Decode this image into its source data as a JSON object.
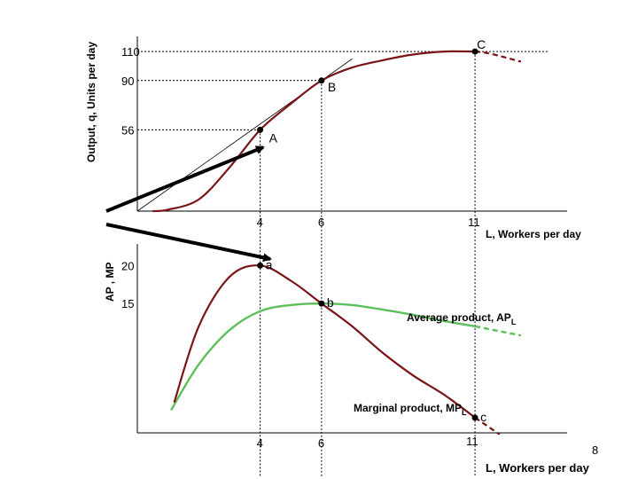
{
  "colors": {
    "tp": "#7a1416",
    "ap": "#5cbf5c",
    "axis": "#000000",
    "arrow": "#000000"
  },
  "page_number": "8",
  "chart_data": [
    {
      "type": "line",
      "panel": "total-product",
      "ylabel": "Output, q, Units per day",
      "xlabel": "L, Workers per day",
      "x_ticks": [
        "4",
        "6",
        "11"
      ],
      "y_ticks": [
        "56",
        "90",
        "110"
      ],
      "xlim": [
        0,
        14
      ],
      "ylim": [
        0,
        118
      ],
      "series": [
        {
          "values": [
            [
              0.5,
              0
            ],
            [
              1,
              1
            ],
            [
              2,
              8
            ],
            [
              3,
              30
            ],
            [
              4,
              56
            ],
            [
              5,
              74
            ],
            [
              6,
              90
            ],
            [
              7,
              99
            ],
            [
              8,
              104
            ],
            [
              9,
              108
            ],
            [
              10,
              110
            ],
            [
              11,
              110
            ],
            [
              11.5,
              108.5
            ],
            [
              12.5,
              103
            ]
          ]
        }
      ],
      "points": [
        {
          "label": "A",
          "x": 4,
          "y": 56
        },
        {
          "label": "B",
          "x": 6,
          "y": 90
        },
        {
          "label": "C",
          "x": 11,
          "y": 110
        }
      ],
      "tangent": [
        [
          0,
          0
        ],
        [
          7,
          105
        ]
      ]
    },
    {
      "type": "line",
      "panel": "average-marginal-product",
      "ylabel": "AP , MP",
      "xlabel": "L, Workers per day",
      "x_ticks": [
        "4",
        "6",
        "11"
      ],
      "y_ticks": [
        "15",
        "20"
      ],
      "xlim": [
        0,
        14
      ],
      "ylim": [
        -2,
        24
      ],
      "series": [
        {
          "name": "Marginal product, MP",
          "sub": "L",
          "values": [
            [
              1.2,
              2
            ],
            [
              2,
              12
            ],
            [
              3,
              18.5
            ],
            [
              4,
              20
            ],
            [
              5,
              18
            ],
            [
              6,
              15
            ],
            [
              7,
              12
            ],
            [
              8,
              8.5
            ],
            [
              9,
              5.5
            ],
            [
              10,
              3
            ],
            [
              11,
              0
            ],
            [
              11.8,
              -2.2
            ]
          ]
        },
        {
          "name": "Average product, AP",
          "sub": "L",
          "values": [
            [
              1.1,
              1
            ],
            [
              2,
              7
            ],
            [
              3,
              11.5
            ],
            [
              4,
              14
            ],
            [
              5,
              14.8
            ],
            [
              6,
              15
            ],
            [
              7,
              14.8
            ],
            [
              8,
              14.2
            ],
            [
              9,
              13.5
            ],
            [
              10,
              12.7
            ],
            [
              11,
              12
            ],
            [
              12.5,
              10.8
            ]
          ]
        }
      ],
      "points": [
        {
          "label": "a",
          "x": 4,
          "y": 20
        },
        {
          "label": "b",
          "x": 6,
          "y": 15
        },
        {
          "label": "c",
          "x": 11,
          "y": 0
        }
      ]
    }
  ]
}
